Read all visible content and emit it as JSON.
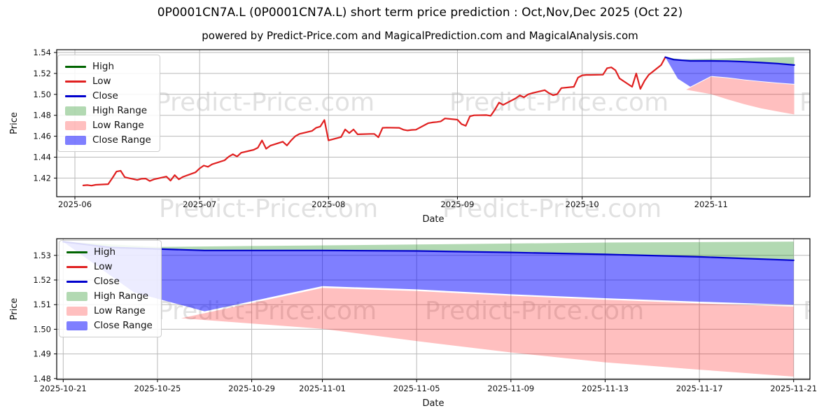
{
  "title": "0P0001CN7A.L (0P0001CN7A.L) short term price prediction : Oct,Nov,Dec 2025 (Oct 22)",
  "subtitle": "powered by Predict-Price.com and MagicalPrediction.com and MagicalAnalysis.com",
  "watermark": {
    "text": "Predict-Price.com"
  },
  "colors": {
    "high_line": "#006400",
    "low_line": "#e02020",
    "close_line": "#0000cd",
    "high_range": "rgba(0,128,0,0.30)",
    "low_range": "rgba(255,0,0,0.25)",
    "close_range": "rgba(0,0,255,0.50)",
    "grid": "#b9b9b9",
    "spine": "#000000"
  },
  "legend": {
    "position": "upper left",
    "items": [
      {
        "label": "High",
        "swatch": "line",
        "color_key": "high_line"
      },
      {
        "label": "Low",
        "swatch": "line",
        "color_key": "low_line"
      },
      {
        "label": "Close",
        "swatch": "line",
        "color_key": "close_line"
      },
      {
        "label": "High Range",
        "swatch": "patch",
        "color_key": "high_range"
      },
      {
        "label": "Low Range",
        "swatch": "patch",
        "color_key": "low_range"
      },
      {
        "label": "Close Range",
        "swatch": "patch",
        "color_key": "close_range"
      }
    ]
  },
  "history": {
    "low": [
      [
        "2025-06-03",
        1.413
      ],
      [
        "2025-06-04",
        1.4133
      ],
      [
        "2025-06-05",
        1.4128
      ],
      [
        "2025-06-06",
        1.4136
      ],
      [
        "2025-06-09",
        1.4142
      ],
      [
        "2025-06-10",
        1.42
      ],
      [
        "2025-06-11",
        1.4262
      ],
      [
        "2025-06-12",
        1.427
      ],
      [
        "2025-06-13",
        1.4208
      ],
      [
        "2025-06-16",
        1.4182
      ],
      [
        "2025-06-17",
        1.4193
      ],
      [
        "2025-06-18",
        1.4195
      ],
      [
        "2025-06-19",
        1.4172
      ],
      [
        "2025-06-20",
        1.4188
      ],
      [
        "2025-06-23",
        1.4215
      ],
      [
        "2025-06-24",
        1.4175
      ],
      [
        "2025-06-25",
        1.4228
      ],
      [
        "2025-06-26",
        1.4188
      ],
      [
        "2025-06-27",
        1.4212
      ],
      [
        "2025-06-30",
        1.4255
      ],
      [
        "2025-07-01",
        1.4292
      ],
      [
        "2025-07-02",
        1.432
      ],
      [
        "2025-07-03",
        1.4308
      ],
      [
        "2025-07-04",
        1.4332
      ],
      [
        "2025-07-07",
        1.437
      ],
      [
        "2025-07-08",
        1.4405
      ],
      [
        "2025-07-09",
        1.4428
      ],
      [
        "2025-07-10",
        1.4406
      ],
      [
        "2025-07-11",
        1.4442
      ],
      [
        "2025-07-14",
        1.447
      ],
      [
        "2025-07-15",
        1.449
      ],
      [
        "2025-07-16",
        1.456
      ],
      [
        "2025-07-17",
        1.448
      ],
      [
        "2025-07-18",
        1.451
      ],
      [
        "2025-07-21",
        1.4548
      ],
      [
        "2025-07-22",
        1.4512
      ],
      [
        "2025-07-23",
        1.456
      ],
      [
        "2025-07-24",
        1.46
      ],
      [
        "2025-07-25",
        1.4622
      ],
      [
        "2025-07-28",
        1.465
      ],
      [
        "2025-07-29",
        1.468
      ],
      [
        "2025-07-30",
        1.4692
      ],
      [
        "2025-07-31",
        1.4755
      ],
      [
        "2025-08-01",
        1.456
      ],
      [
        "2025-08-04",
        1.4592
      ],
      [
        "2025-08-05",
        1.4665
      ],
      [
        "2025-08-06",
        1.463
      ],
      [
        "2025-08-07",
        1.4665
      ],
      [
        "2025-08-08",
        1.4618
      ],
      [
        "2025-08-11",
        1.4622
      ],
      [
        "2025-08-12",
        1.4622
      ],
      [
        "2025-08-13",
        1.459
      ],
      [
        "2025-08-14",
        1.468
      ],
      [
        "2025-08-15",
        1.4682
      ],
      [
        "2025-08-18",
        1.468
      ],
      [
        "2025-08-19",
        1.4662
      ],
      [
        "2025-08-20",
        1.4655
      ],
      [
        "2025-08-21",
        1.466
      ],
      [
        "2025-08-22",
        1.4662
      ],
      [
        "2025-08-25",
        1.4725
      ],
      [
        "2025-08-26",
        1.4732
      ],
      [
        "2025-08-27",
        1.4736
      ],
      [
        "2025-08-28",
        1.4742
      ],
      [
        "2025-08-29",
        1.477
      ],
      [
        "2025-09-01",
        1.4758
      ],
      [
        "2025-09-02",
        1.4715
      ],
      [
        "2025-09-03",
        1.47
      ],
      [
        "2025-09-04",
        1.479
      ],
      [
        "2025-09-05",
        1.48
      ],
      [
        "2025-09-08",
        1.4802
      ],
      [
        "2025-09-09",
        1.4795
      ],
      [
        "2025-09-10",
        1.4852
      ],
      [
        "2025-09-11",
        1.4922
      ],
      [
        "2025-09-12",
        1.49
      ],
      [
        "2025-09-15",
        1.4962
      ],
      [
        "2025-09-16",
        1.499
      ],
      [
        "2025-09-17",
        1.4972
      ],
      [
        "2025-09-18",
        1.5
      ],
      [
        "2025-09-19",
        1.5012
      ],
      [
        "2025-09-22",
        1.504
      ],
      [
        "2025-09-23",
        1.5012
      ],
      [
        "2025-09-24",
        1.4992
      ],
      [
        "2025-09-25",
        1.5002
      ],
      [
        "2025-09-26",
        1.506
      ],
      [
        "2025-09-29",
        1.5072
      ],
      [
        "2025-09-30",
        1.516
      ],
      [
        "2025-10-01",
        1.5182
      ],
      [
        "2025-10-02",
        1.5186
      ],
      [
        "2025-10-03",
        1.5186
      ],
      [
        "2025-10-06",
        1.5188
      ],
      [
        "2025-10-07",
        1.525
      ],
      [
        "2025-10-08",
        1.5258
      ],
      [
        "2025-10-09",
        1.523
      ],
      [
        "2025-10-10",
        1.5152
      ],
      [
        "2025-10-13",
        1.5072
      ],
      [
        "2025-10-14",
        1.52
      ],
      [
        "2025-10-15",
        1.5052
      ],
      [
        "2025-10-16",
        1.513
      ],
      [
        "2025-10-17",
        1.5186
      ],
      [
        "2025-10-20",
        1.528
      ],
      [
        "2025-10-21",
        1.5355
      ]
    ]
  },
  "prediction": {
    "close": [
      [
        "2025-10-21",
        1.5355
      ],
      [
        "2025-10-23",
        1.5332
      ],
      [
        "2025-10-27",
        1.532
      ],
      [
        "2025-11-01",
        1.532
      ],
      [
        "2025-11-05",
        1.5318
      ],
      [
        "2025-11-09",
        1.5312
      ],
      [
        "2025-11-13",
        1.5304
      ],
      [
        "2025-11-17",
        1.5294
      ],
      [
        "2025-11-21",
        1.528
      ]
    ],
    "high_top": [
      [
        "2025-10-21",
        1.5355
      ],
      [
        "2025-10-25",
        1.5334
      ],
      [
        "2025-10-29",
        1.5338
      ],
      [
        "2025-11-05",
        1.5344
      ],
      [
        "2025-11-13",
        1.5352
      ],
      [
        "2025-11-21",
        1.5356
      ]
    ],
    "close_range_bottom": [
      [
        "2025-10-21",
        1.5355
      ],
      [
        "2025-10-24",
        1.515
      ],
      [
        "2025-10-27",
        1.5073
      ],
      [
        "2025-11-01",
        1.5175
      ],
      [
        "2025-11-05",
        1.5162
      ],
      [
        "2025-11-09",
        1.5142
      ],
      [
        "2025-11-13",
        1.5126
      ],
      [
        "2025-11-17",
        1.5112
      ],
      [
        "2025-11-21",
        1.51
      ]
    ],
    "low_top": [
      [
        "2025-10-21",
        1.5355
      ],
      [
        "2025-10-26",
        1.5045
      ],
      [
        "2025-11-01",
        1.5168
      ],
      [
        "2025-11-05",
        1.5155
      ],
      [
        "2025-11-09",
        1.5136
      ],
      [
        "2025-11-13",
        1.512
      ],
      [
        "2025-11-17",
        1.5105
      ],
      [
        "2025-11-21",
        1.5092
      ]
    ],
    "low_bottom": [
      [
        "2025-10-21",
        1.5355
      ],
      [
        "2025-10-26",
        1.5045
      ],
      [
        "2025-11-01",
        1.5002
      ],
      [
        "2025-11-05",
        1.4952
      ],
      [
        "2025-11-09",
        1.4906
      ],
      [
        "2025-11-13",
        1.4866
      ],
      [
        "2025-11-17",
        1.4836
      ],
      [
        "2025-11-21",
        1.4808
      ]
    ]
  },
  "chart_data": [
    {
      "id": "top",
      "type": "line",
      "title": "overview with history",
      "xlabel": "Date",
      "ylabel": "Price",
      "grid": true,
      "xlim": [
        "2025-05-28",
        "2025-11-24"
      ],
      "ylim": [
        1.402,
        1.543
      ],
      "x_ticks": [
        {
          "label": "2025-06",
          "date": "2025-06-01"
        },
        {
          "label": "2025-07",
          "date": "2025-07-01"
        },
        {
          "label": "2025-08",
          "date": "2025-08-01"
        },
        {
          "label": "2025-09",
          "date": "2025-09-01"
        },
        {
          "label": "2025-10",
          "date": "2025-10-01"
        },
        {
          "label": "2025-11",
          "date": "2025-11-01"
        }
      ],
      "y_ticks": [
        {
          "label": "1.54",
          "value": 1.54
        },
        {
          "label": "1.52",
          "value": 1.52
        },
        {
          "label": "1.50",
          "value": 1.5
        },
        {
          "label": "1.48",
          "value": 1.48
        },
        {
          "label": "1.46",
          "value": 1.46
        },
        {
          "label": "1.44",
          "value": 1.44
        },
        {
          "label": "1.42",
          "value": 1.42
        }
      ],
      "bands": [
        {
          "name": "Low Range",
          "fill": "low_range",
          "top": "low_top",
          "bottom": "low_bottom"
        },
        {
          "name": "Close Range",
          "fill": "close_range",
          "top": "close",
          "bottom": "close_range_bottom"
        },
        {
          "name": "High Range",
          "fill": "high_range",
          "top": "high_top",
          "bottom": "close"
        }
      ],
      "series": [
        {
          "name": "Low",
          "ref": "history.low",
          "color": "low_line"
        },
        {
          "name": "Close",
          "ref": "prediction.close",
          "color": "close_line"
        }
      ]
    },
    {
      "id": "bottom",
      "type": "line",
      "title": "prediction detail",
      "xlabel": "Date",
      "ylabel": "Price",
      "grid": true,
      "xlim": [
        "2025-10-20",
        "2025-11-22"
      ],
      "ylim": [
        1.48,
        1.537
      ],
      "x_ticks": [
        {
          "label": "2025-10-21",
          "date": "2025-10-21"
        },
        {
          "label": "2025-10-25",
          "date": "2025-10-25"
        },
        {
          "label": "2025-10-29",
          "date": "2025-10-29"
        },
        {
          "label": "2025-11-01",
          "date": "2025-11-01"
        },
        {
          "label": "2025-11-05",
          "date": "2025-11-05"
        },
        {
          "label": "2025-11-09",
          "date": "2025-11-09"
        },
        {
          "label": "2025-11-13",
          "date": "2025-11-13"
        },
        {
          "label": "2025-11-17",
          "date": "2025-11-17"
        },
        {
          "label": "2025-11-21",
          "date": "2025-11-21"
        }
      ],
      "y_ticks": [
        {
          "label": "1.53",
          "value": 1.53
        },
        {
          "label": "1.52",
          "value": 1.52
        },
        {
          "label": "1.51",
          "value": 1.51
        },
        {
          "label": "1.50",
          "value": 1.5
        },
        {
          "label": "1.49",
          "value": 1.49
        },
        {
          "label": "1.48",
          "value": 1.48
        }
      ],
      "bands": [
        {
          "name": "Low Range",
          "fill": "low_range",
          "top": "low_top",
          "bottom": "low_bottom"
        },
        {
          "name": "Close Range",
          "fill": "close_range",
          "top": "close",
          "bottom": "close_range_bottom"
        },
        {
          "name": "High Range",
          "fill": "high_range",
          "top": "high_top",
          "bottom": "close"
        }
      ],
      "series": [
        {
          "name": "Close",
          "ref": "prediction.close",
          "color": "close_line"
        }
      ]
    }
  ]
}
